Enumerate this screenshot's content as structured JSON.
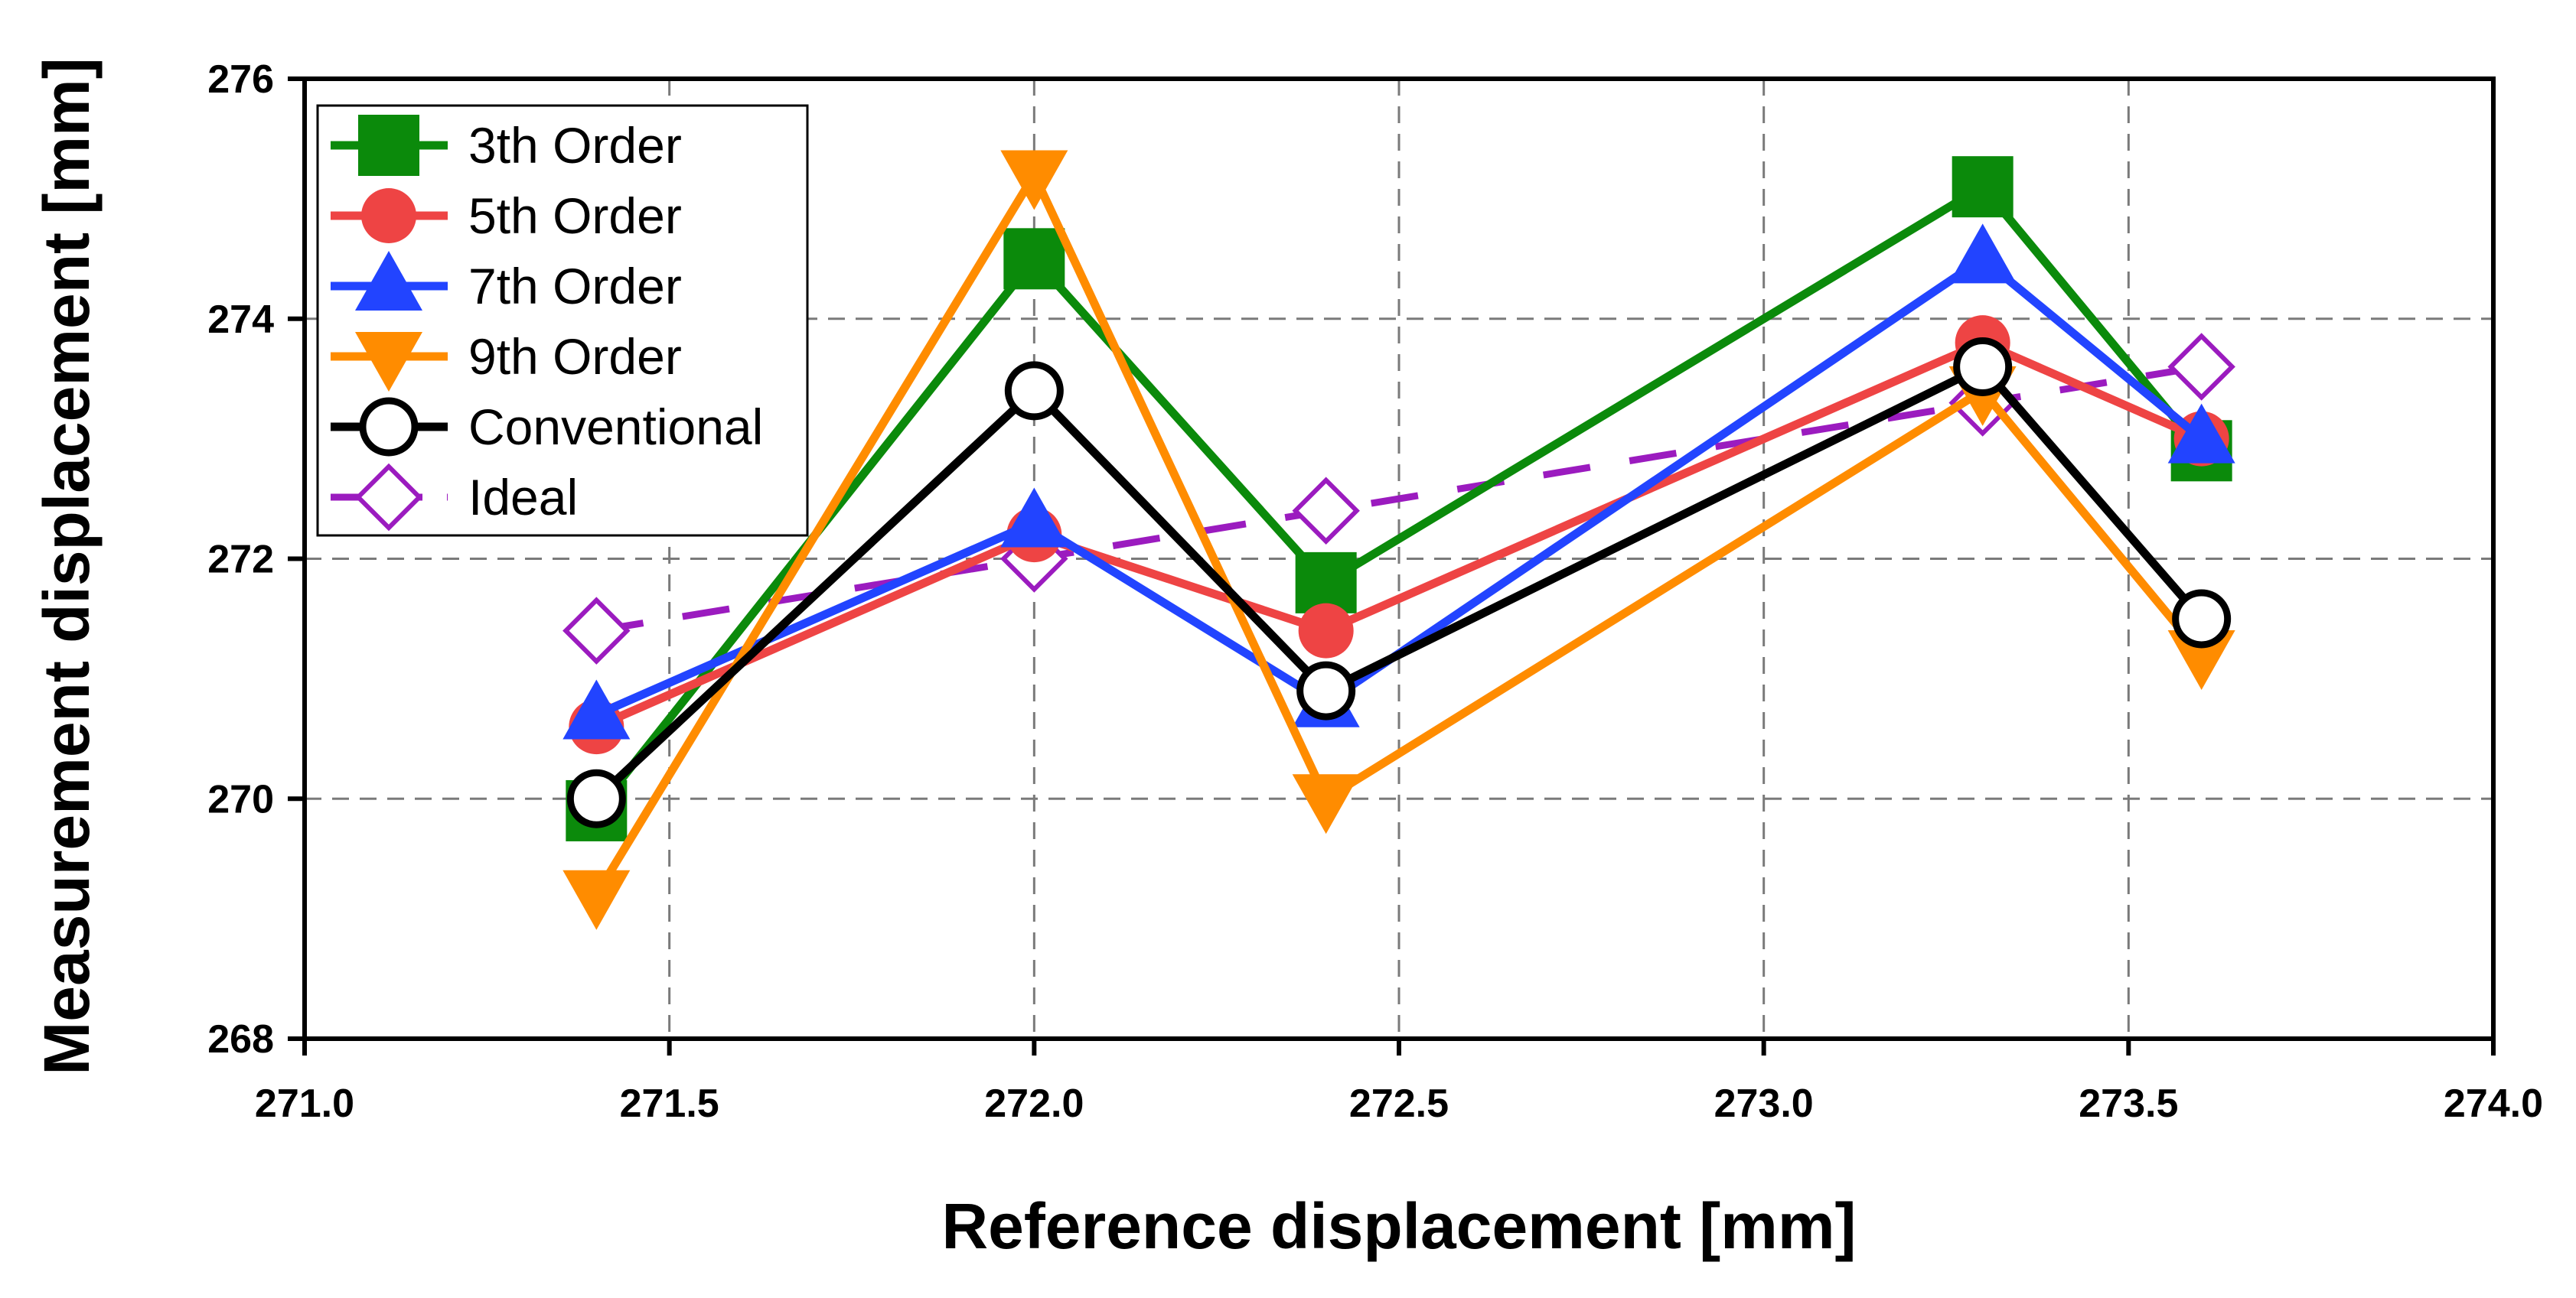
{
  "chart_data": {
    "type": "line",
    "title": "",
    "xlabel": "Reference displacement [mm]",
    "ylabel": "Measurement displacement [mm]",
    "xlim": [
      271.0,
      274.0
    ],
    "ylim": [
      268,
      276
    ],
    "xticks": [
      "271.0",
      "271.5",
      "272.0",
      "272.5",
      "273.0",
      "273.5",
      "274.0"
    ],
    "yticks": [
      "268",
      "270",
      "272",
      "274",
      "276"
    ],
    "grid": true,
    "legend_position": "top-left",
    "x": [
      271.4,
      272.0,
      272.4,
      273.3,
      273.6
    ],
    "series": [
      {
        "name": "3th Order",
        "color": "#0b8a0b",
        "marker": "square",
        "line": "solid",
        "values": [
          269.9,
          274.5,
          271.8,
          275.1,
          272.9
        ]
      },
      {
        "name": "5th Order",
        "color": "#ee4444",
        "marker": "circle",
        "line": "solid",
        "values": [
          270.6,
          272.2,
          271.4,
          273.8,
          273.0
        ]
      },
      {
        "name": "7th Order",
        "color": "#2244ff",
        "marker": "triangle-up",
        "line": "solid",
        "values": [
          270.7,
          272.3,
          270.8,
          274.5,
          273.0
        ]
      },
      {
        "name": "9th Order",
        "color": "#ff8c00",
        "marker": "triangle-down",
        "line": "solid",
        "values": [
          269.2,
          275.2,
          270.0,
          273.4,
          271.2
        ]
      },
      {
        "name": "Conventional",
        "color": "#000000",
        "marker": "open-circle",
        "line": "solid",
        "values": [
          270.0,
          273.4,
          270.9,
          273.6,
          271.5
        ]
      },
      {
        "name": "Ideal",
        "color": "#9b1bbf",
        "marker": "open-diamond",
        "line": "dashed",
        "values": [
          271.4,
          272.0,
          272.4,
          273.3,
          273.6
        ]
      }
    ]
  }
}
